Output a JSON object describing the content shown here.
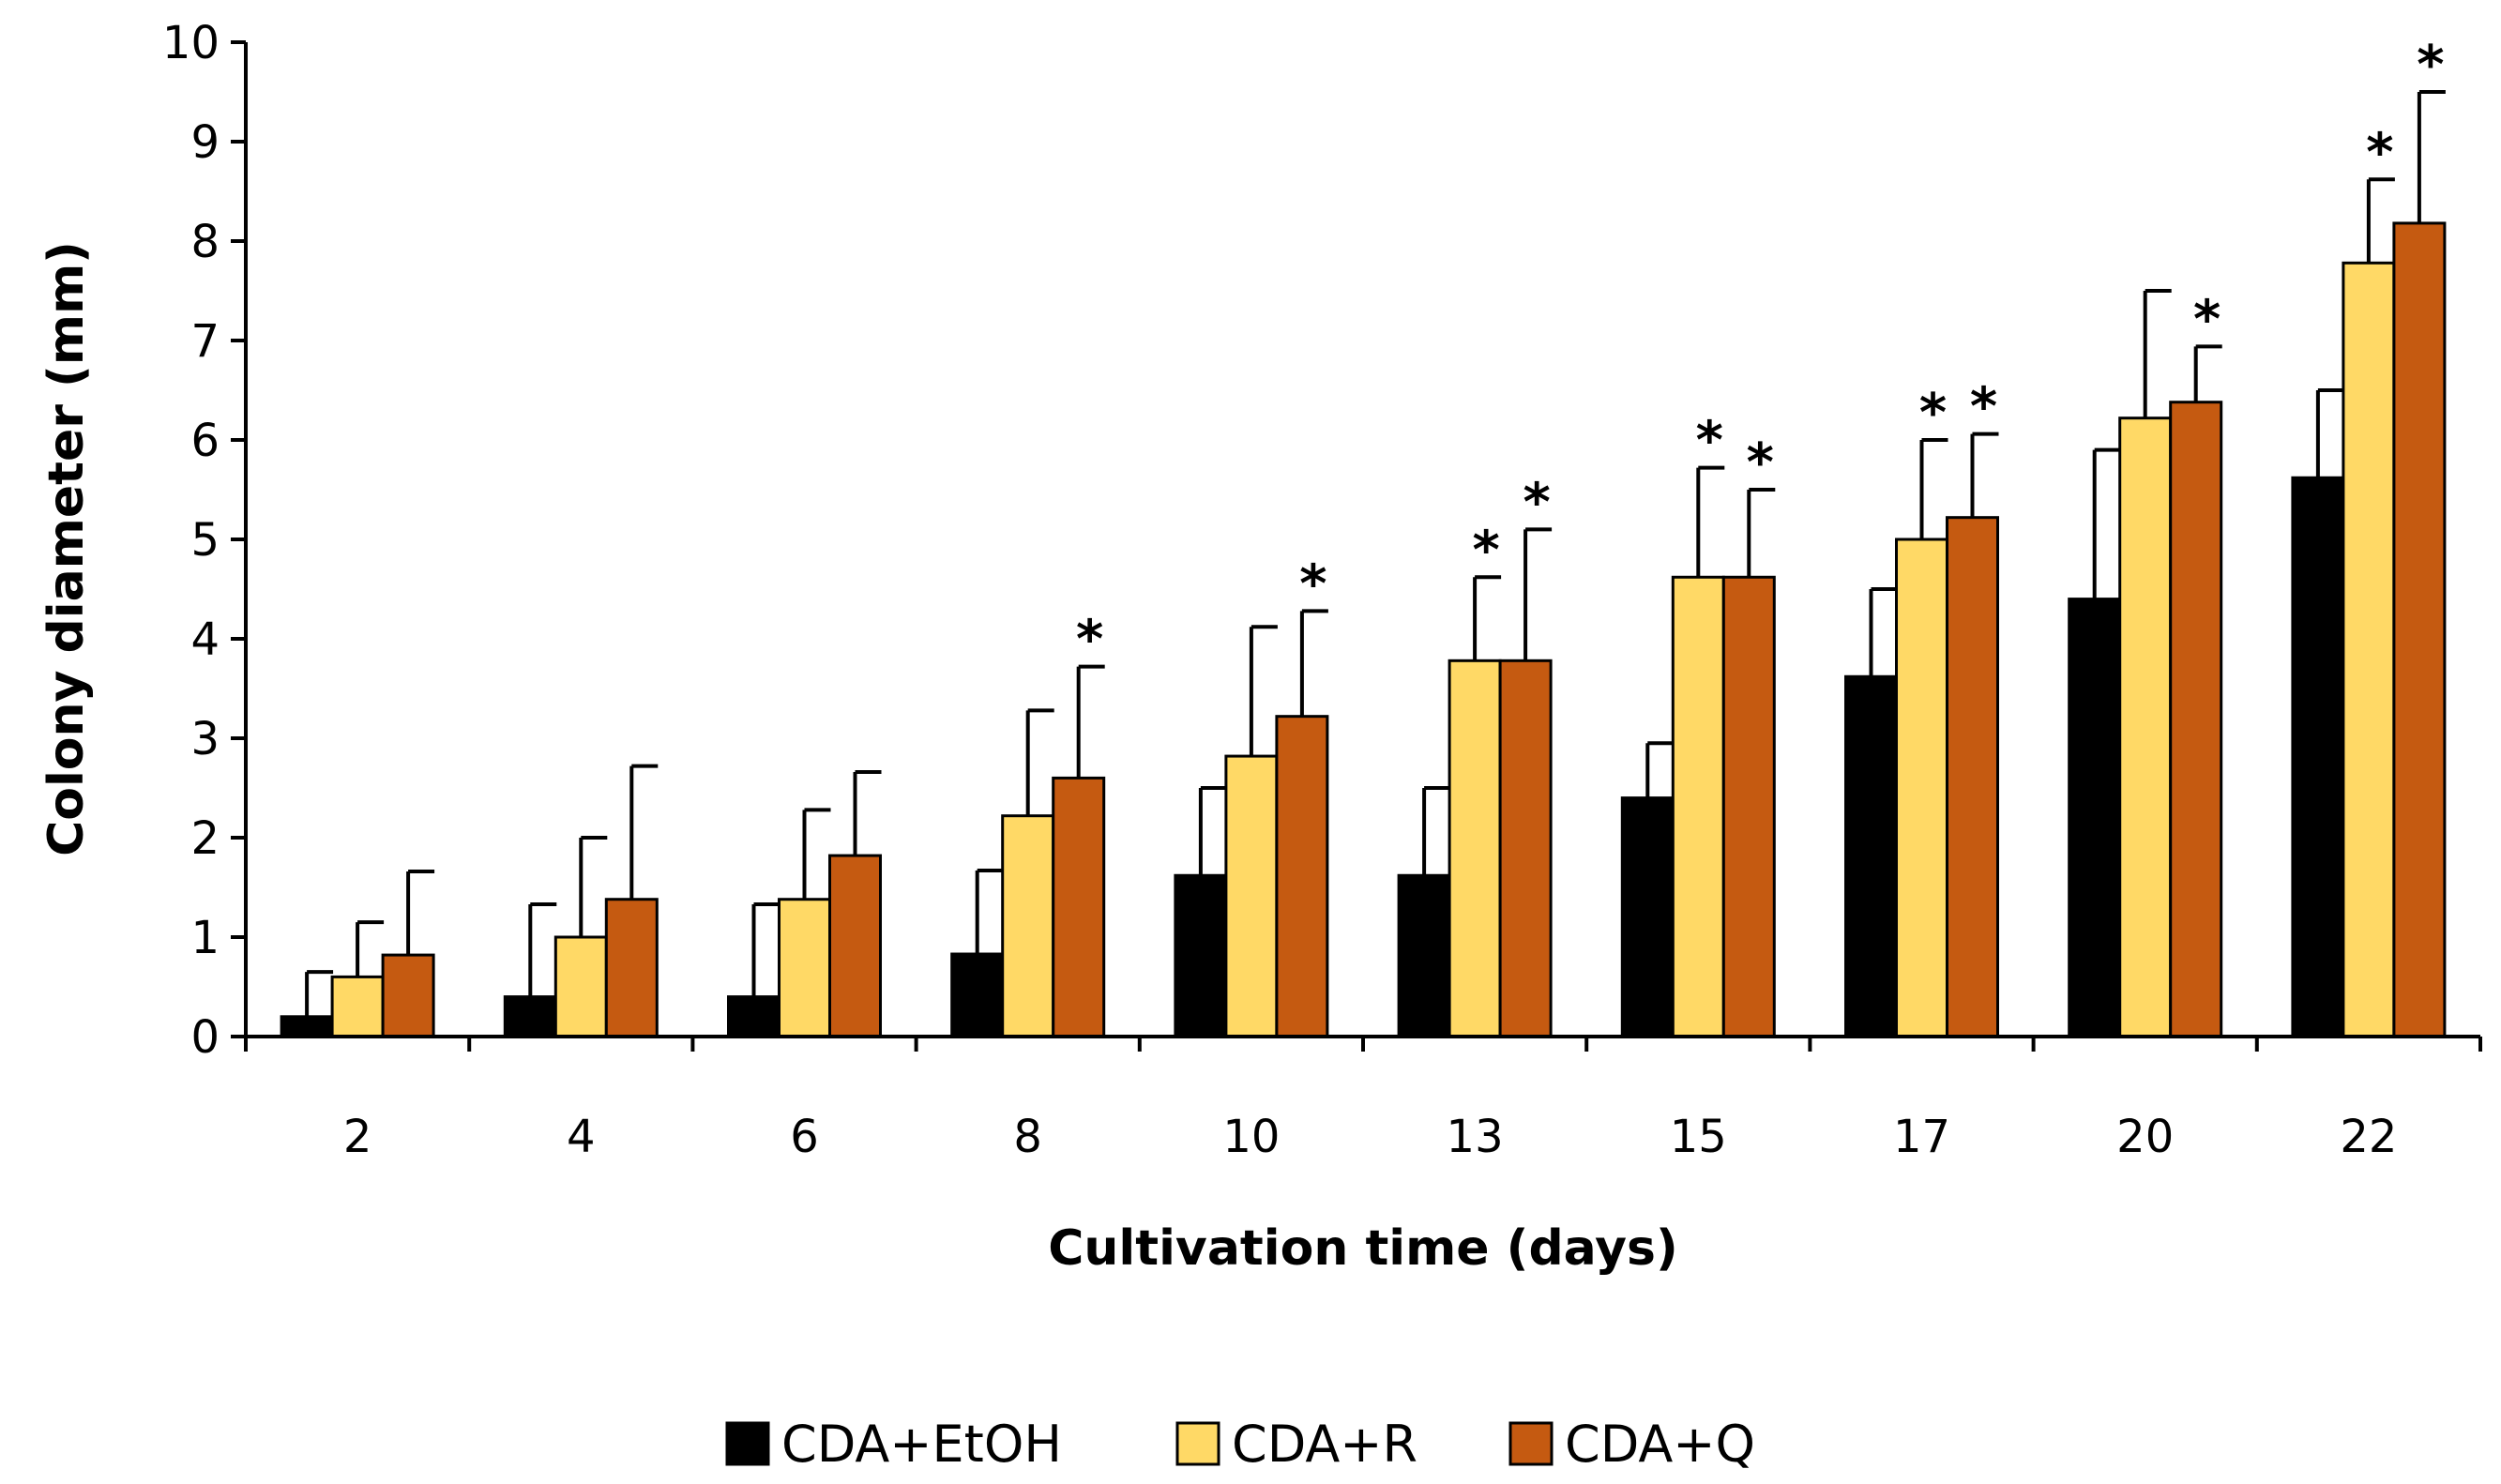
{
  "chart_data": {
    "type": "bar",
    "title": "",
    "xlabel": "Cultivation time (days)",
    "ylabel": "Colony diameter (mm)",
    "ylim": [
      0,
      10
    ],
    "yticks": [
      "0",
      "1",
      "2",
      "3",
      "4",
      "5",
      "6",
      "7",
      "8",
      "9",
      "10"
    ],
    "categories": [
      "2",
      "4",
      "6",
      "8",
      "10",
      "13",
      "15",
      "17",
      "20",
      "22"
    ],
    "legend_position": "bottom-center",
    "grid": false,
    "series": [
      {
        "name": "CDA+EtOH",
        "color": "#000000",
        "values": [
          0.2,
          0.4,
          0.4,
          0.83,
          1.62,
          1.62,
          2.4,
          3.62,
          4.4,
          5.62
        ],
        "error": [
          0.45,
          0.93,
          0.93,
          0.84,
          0.88,
          0.88,
          0.55,
          0.88,
          1.5,
          0.88
        ],
        "significant": [
          false,
          false,
          false,
          false,
          false,
          false,
          false,
          false,
          false,
          false
        ]
      },
      {
        "name": "CDA+R",
        "color": "#FFD966",
        "values": [
          0.6,
          1.0,
          1.38,
          2.22,
          2.82,
          3.78,
          4.62,
          5.0,
          6.22,
          7.78
        ],
        "error": [
          0.55,
          1.0,
          0.9,
          1.06,
          1.3,
          0.84,
          1.1,
          1.0,
          1.28,
          0.84
        ],
        "significant": [
          false,
          false,
          false,
          false,
          false,
          true,
          true,
          true,
          false,
          true
        ]
      },
      {
        "name": "CDA+Q",
        "color": "#C55A11",
        "values": [
          0.82,
          1.38,
          1.82,
          2.6,
          3.22,
          3.78,
          4.62,
          5.22,
          6.38,
          8.18
        ],
        "error": [
          0.84,
          1.34,
          0.84,
          1.12,
          1.06,
          1.32,
          0.88,
          0.84,
          0.56,
          1.32
        ],
        "significant": [
          false,
          false,
          false,
          true,
          true,
          true,
          true,
          true,
          true,
          true
        ]
      }
    ],
    "annotation_symbol": "*"
  }
}
